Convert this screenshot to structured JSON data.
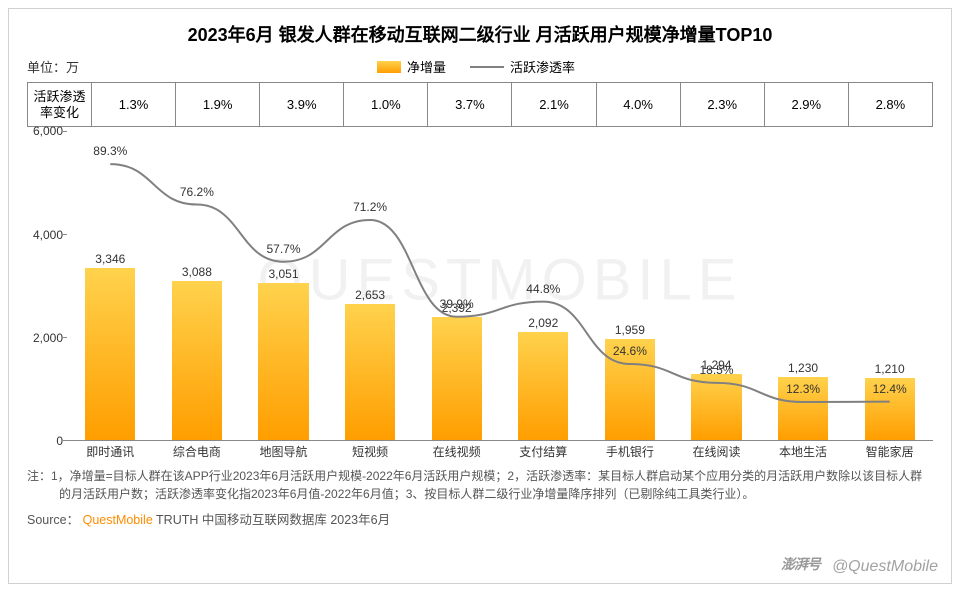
{
  "title": "2023年6月 银发人群在移动互联网二级行业 月活跃用户规模净增量TOP10",
  "title_fontsize": 18,
  "unit_label": "单位：万",
  "legend": {
    "bar_label": "净增量",
    "line_label": "活跃渗透率",
    "bar_color": "#ffb600",
    "bar_gradient_top": "#ffd24d",
    "bar_gradient_bottom": "#ff9e00",
    "line_color": "#808080"
  },
  "header_row": {
    "label": "活跃渗透率变化",
    "values": [
      "1.3%",
      "1.9%",
      "3.9%",
      "1.0%",
      "3.7%",
      "2.1%",
      "4.0%",
      "2.3%",
      "2.9%",
      "2.8%"
    ]
  },
  "chart": {
    "type": "bar+line",
    "ylim": [
      0,
      6000
    ],
    "yticks": [
      0,
      2000,
      4000,
      6000
    ],
    "ytick_labels": [
      "0",
      "2,000",
      "4,000",
      "6,000"
    ],
    "categories": [
      "即时通讯",
      "综合电商",
      "地图导航",
      "短视频",
      "在线视频",
      "支付结算",
      "手机银行",
      "在线阅读",
      "本地生活",
      "智能家居"
    ],
    "bar_values": [
      3346,
      3088,
      3051,
      2653,
      2392,
      2092,
      1959,
      1294,
      1230,
      1210
    ],
    "bar_value_labels": [
      "3,346",
      "3,088",
      "3,051",
      "2,653",
      "2,392",
      "2,092",
      "1,959",
      "1,294",
      "1,230",
      "1,210"
    ],
    "line_values": [
      89.3,
      76.2,
      57.7,
      71.2,
      39.9,
      44.8,
      24.6,
      18.5,
      12.3,
      12.4
    ],
    "line_value_labels": [
      "89.3%",
      "76.2%",
      "57.7%",
      "71.2%",
      "39.9%",
      "44.8%",
      "24.6%",
      "18.5%",
      "12.3%",
      "12.4%"
    ],
    "line_ylim": [
      0,
      100
    ],
    "line_width": 2,
    "font_size_axis": 12,
    "font_size_value": 12
  },
  "notes": "注：1，净增量=目标人群在该APP行业2023年6月活跃用户规模-2022年6月活跃用户规模；2，活跃渗透率：某目标人群启动某个应用分类的月活跃用户数除以该目标人群的月活跃用户数；活跃渗透率变化指2023年6月值-2022年6月值；3、按目标人群二级行业净增量降序排列（已剔除纯工具类行业）。",
  "source": {
    "prefix": "Source：",
    "brand": "QuestMobile",
    "rest": "TRUTH 中国移动互联网数据库 2023年6月"
  },
  "watermark": "QUESTMOBILE",
  "corner_watermark": "@QuestMobile",
  "corner_logo": "澎湃号",
  "colors": {
    "text": "#333333",
    "border": "#888888",
    "background": "#ffffff"
  }
}
